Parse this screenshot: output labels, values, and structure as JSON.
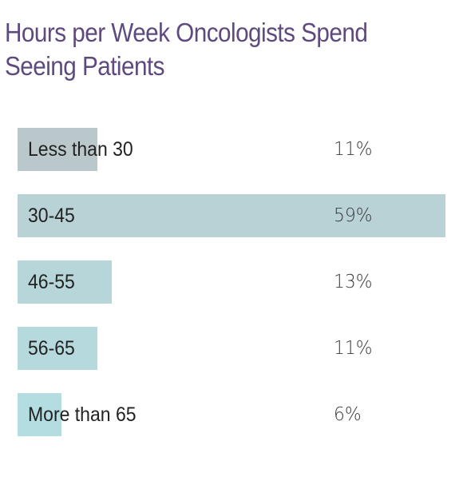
{
  "chart_data": {
    "type": "bar",
    "orientation": "horizontal",
    "title": "Hours per Week Oncologists Spend Seeing Patients",
    "categories": [
      "Less than 30",
      "30-45",
      "46-55",
      "56-65",
      "More than 65"
    ],
    "values": [
      11,
      59,
      13,
      11,
      6
    ],
    "value_labels": [
      "11%",
      "59%",
      "13%",
      "11%",
      "6%"
    ],
    "unit": "%",
    "xlim": [
      0,
      59
    ],
    "grid": false,
    "legend": "none",
    "bar_colors": [
      "#bac8cc",
      "#b8d2d6",
      "#b6d6da",
      "#b5d9dd",
      "#b3dde0"
    ],
    "title_color": "#5e4a7e"
  }
}
